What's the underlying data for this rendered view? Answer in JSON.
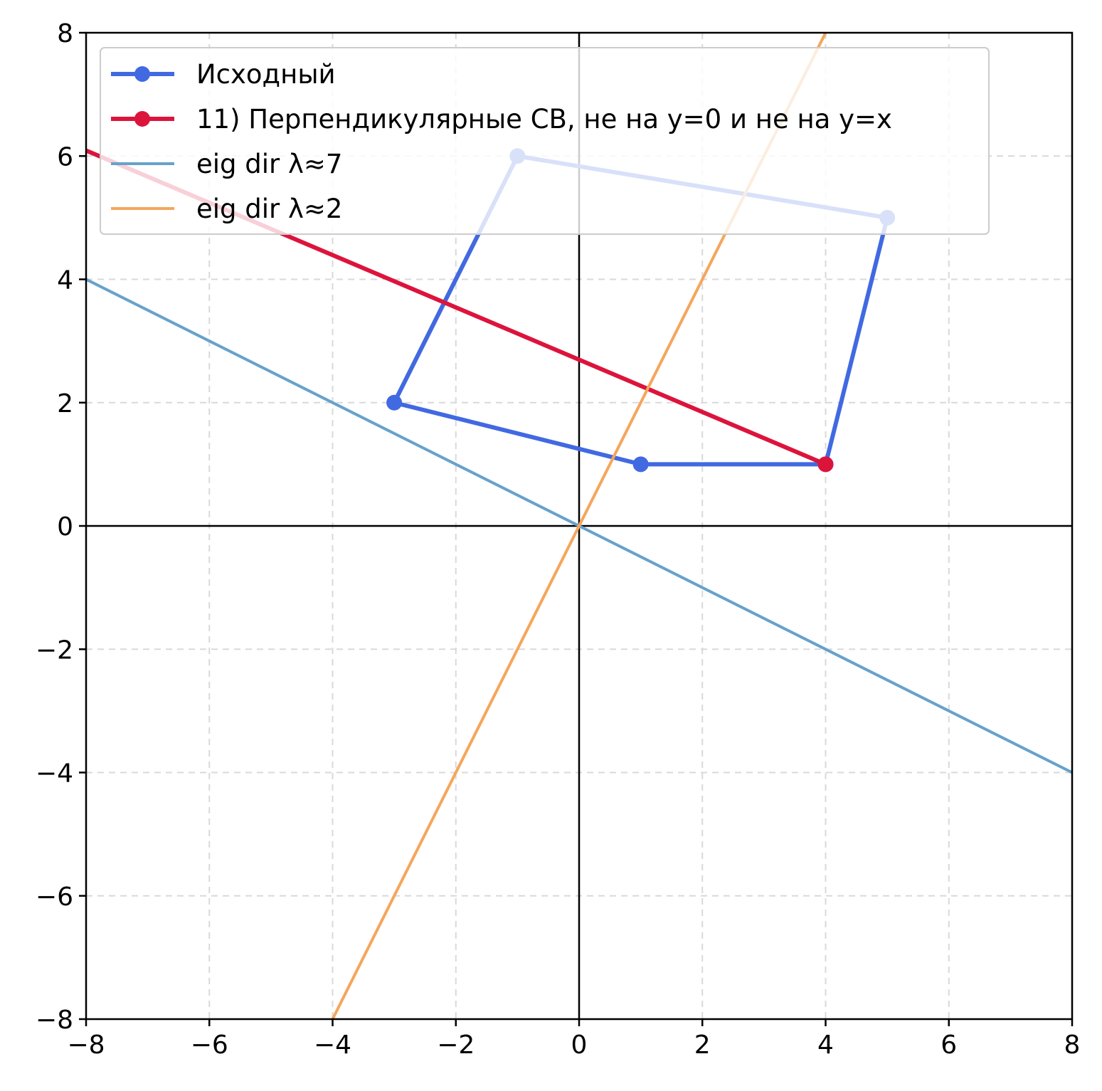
{
  "chart_data": {
    "type": "line",
    "title": "",
    "xlabel": "",
    "ylabel": "",
    "xlim": [
      -8,
      8
    ],
    "ylim": [
      -8,
      8
    ],
    "xticks": [
      -8,
      -6,
      -4,
      -2,
      0,
      2,
      4,
      6,
      8
    ],
    "yticks": [
      -8,
      -6,
      -4,
      -2,
      0,
      2,
      4,
      6,
      8
    ],
    "xtick_labels": [
      "−8",
      "−6",
      "−4",
      "−2",
      "0",
      "2",
      "4",
      "6",
      "8"
    ],
    "ytick_labels": [
      "−8",
      "−6",
      "−4",
      "−2",
      "0",
      "2",
      "4",
      "6",
      "8"
    ],
    "grid": true,
    "legend_position": "top-left",
    "series": [
      {
        "name": "Исходный",
        "kind": "polygon",
        "color": "#4169e1",
        "points": [
          [
            1,
            1
          ],
          [
            4,
            1
          ],
          [
            5,
            5
          ],
          [
            -1,
            6
          ],
          [
            -3,
            2
          ]
        ]
      },
      {
        "name": "11) Перпендикулярные СВ, не на y=0 и не на y=x",
        "kind": "polygon",
        "color": "#dc143c",
        "points": [
          [
            4,
            1
          ],
          [
            -8,
            6.09
          ]
        ]
      },
      {
        "name": "eig dir λ≈7",
        "kind": "line",
        "color": "#66a2cc",
        "points": [
          [
            -8,
            4
          ],
          [
            8,
            -4
          ]
        ]
      },
      {
        "name": "eig dir λ≈2",
        "kind": "line",
        "color": "#f5a65b",
        "points": [
          [
            -4,
            -8
          ],
          [
            4,
            8
          ]
        ]
      }
    ]
  }
}
